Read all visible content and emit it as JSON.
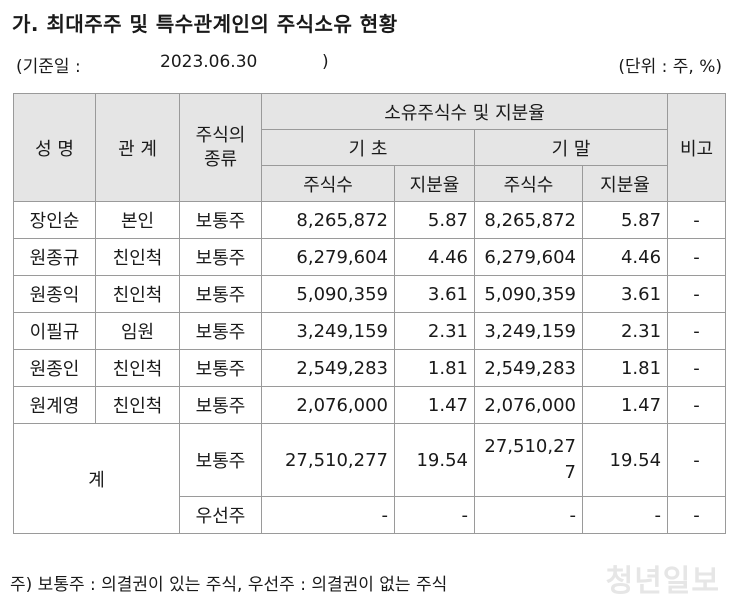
{
  "title": "가. 최대주주 및 특수관계인의 주식소유 현황",
  "meta": {
    "base_label": "(기준일 :",
    "base_date": "2023.06.30",
    "close_paren": ")",
    "unit": "(단위 : 주, %)"
  },
  "headers": {
    "name": "성 명",
    "relation": "관 계",
    "stock_type": "주식의 종류",
    "ownership": "소유주식수 및 지분율",
    "period_start": "기 초",
    "period_end": "기 말",
    "shares": "주식수",
    "ratio": "지분율",
    "remarks": "비고"
  },
  "rows": [
    {
      "name": "장인순",
      "relation": "본인",
      "type": "보통주",
      "start_shares": "8,265,872",
      "start_ratio": "5.87",
      "end_shares": "8,265,872",
      "end_ratio": "5.87",
      "remarks": "-"
    },
    {
      "name": "원종규",
      "relation": "친인척",
      "type": "보통주",
      "start_shares": "6,279,604",
      "start_ratio": "4.46",
      "end_shares": "6,279,604",
      "end_ratio": "4.46",
      "remarks": "-"
    },
    {
      "name": "원종익",
      "relation": "친인척",
      "type": "보통주",
      "start_shares": "5,090,359",
      "start_ratio": "3.61",
      "end_shares": "5,090,359",
      "end_ratio": "3.61",
      "remarks": "-"
    },
    {
      "name": "이필규",
      "relation": "임원",
      "type": "보통주",
      "start_shares": "3,249,159",
      "start_ratio": "2.31",
      "end_shares": "3,249,159",
      "end_ratio": "2.31",
      "remarks": "-"
    },
    {
      "name": "원종인",
      "relation": "친인척",
      "type": "보통주",
      "start_shares": "2,549,283",
      "start_ratio": "1.81",
      "end_shares": "2,549,283",
      "end_ratio": "1.81",
      "remarks": "-"
    },
    {
      "name": "원계영",
      "relation": "친인척",
      "type": "보통주",
      "start_shares": "2,076,000",
      "start_ratio": "1.47",
      "end_shares": "2,076,000",
      "end_ratio": "1.47",
      "remarks": "-"
    }
  ],
  "total": {
    "label": "계",
    "common": {
      "type": "보통주",
      "start_shares": "27,510,277",
      "start_ratio": "19.54",
      "end_shares_line1": "27,510,27",
      "end_shares_line2": "7",
      "end_ratio": "19.54",
      "remarks": "-"
    },
    "preferred": {
      "type": "우선주",
      "start_shares": "-",
      "start_ratio": "-",
      "end_shares": "-",
      "end_ratio": "-",
      "remarks": "-"
    }
  },
  "footnote": "주) 보통주 : 의결권이 있는 주식,   우선주 : 의결권이 없는 주식",
  "logo_text": "청년일보"
}
